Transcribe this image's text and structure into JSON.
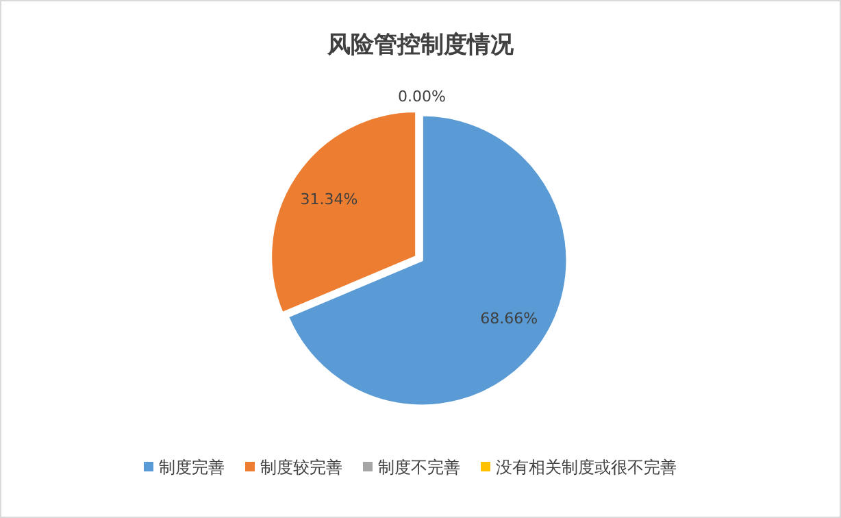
{
  "chart_data": {
    "type": "pie",
    "title": "风险管控制度情况",
    "categories": [
      "制度完善",
      "制度较完善",
      "制度不完善",
      "没有相关制度或很不完善"
    ],
    "values": [
      68.66,
      31.34,
      0,
      0
    ],
    "colors": [
      "#5b9bd5",
      "#ed7d31",
      "#a5a5a5",
      "#ffc000"
    ],
    "value_labels": [
      "68.66%",
      "31.34%",
      "0.00%",
      null
    ],
    "legend": "bottom"
  }
}
